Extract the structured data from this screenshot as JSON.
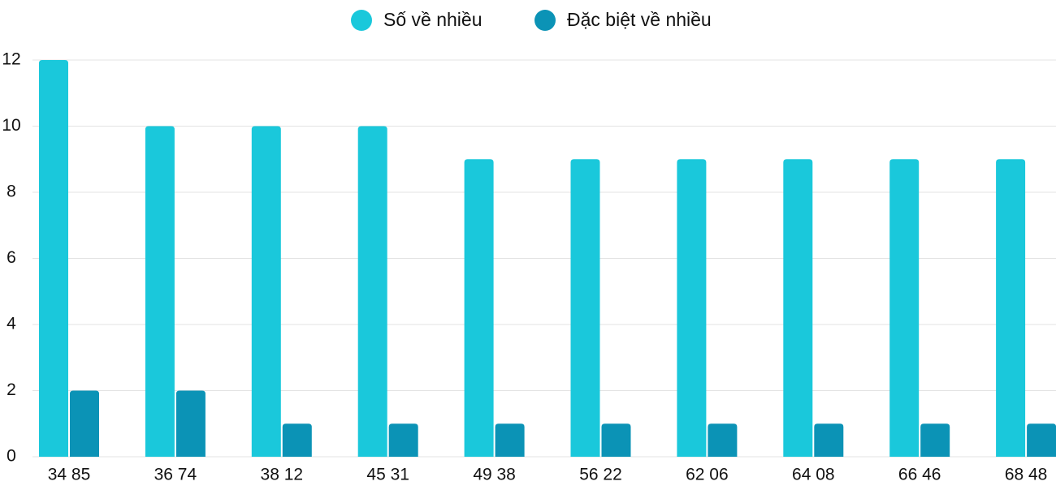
{
  "chart_data": {
    "type": "bar",
    "categories": [
      "34 85",
      "36 74",
      "38 12",
      "45 31",
      "49 38",
      "56 22",
      "62 06",
      "64 08",
      "66 46",
      "68 48"
    ],
    "series": [
      {
        "name": "Số về nhiều",
        "color": "#1ac8db",
        "values": [
          12,
          10,
          10,
          10,
          9,
          9,
          9,
          9,
          9,
          9
        ]
      },
      {
        "name": "Đặc biệt về nhiều",
        "color": "#0b93b6",
        "values": [
          2,
          2,
          1,
          1,
          1,
          1,
          1,
          1,
          1,
          1
        ]
      }
    ],
    "ylim": [
      0,
      12
    ],
    "yticks": [
      0,
      2,
      4,
      6,
      8,
      10,
      12
    ],
    "grid": true,
    "legend": "top"
  }
}
